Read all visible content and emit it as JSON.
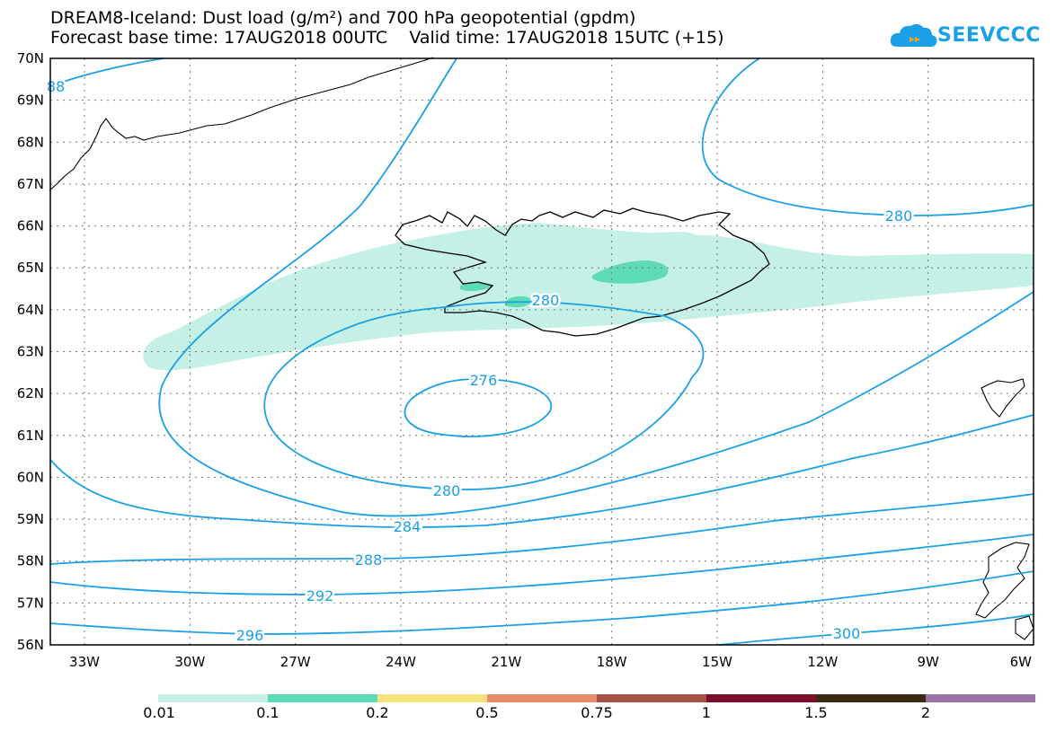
{
  "header": {
    "title_line1": "DREAM8-Iceland: Dust load (g/m²) and 700 hPa geopotential (gpdm)",
    "title_line2": "Forecast base time: 17AUG2018 00UTC    Valid time: 17AUG2018 15UTC (+15)",
    "logo_text": "SEEVCCC"
  },
  "map": {
    "lat_labels": [
      "70N",
      "69N",
      "68N",
      "67N",
      "66N",
      "65N",
      "64N",
      "63N",
      "62N",
      "61N",
      "60N",
      "59N",
      "58N",
      "57N",
      "56N"
    ],
    "lon_labels": [
      "33W",
      "30W",
      "27W",
      "24W",
      "21W",
      "18W",
      "15W",
      "12W",
      "9W",
      "6W"
    ],
    "contour_labels": [
      "88",
      "280",
      "280",
      "276",
      "280",
      "284",
      "288",
      "292",
      "296",
      "300"
    ],
    "contour_color": "#1aa0e6",
    "dust_color_light": "#c5f0e6",
    "dust_color_mid": "#5ddbb5"
  },
  "colorbar": {
    "labels": [
      "0.01",
      "0.1",
      "0.2",
      "0.5",
      "0.75",
      "1",
      "1.5",
      "2"
    ],
    "colors": [
      "#c5f0e6",
      "#5ddbb5",
      "#f5e27c",
      "#e98c6b",
      "#a75149",
      "#7c0f2c",
      "#3c2914",
      "#9b72a5"
    ]
  }
}
